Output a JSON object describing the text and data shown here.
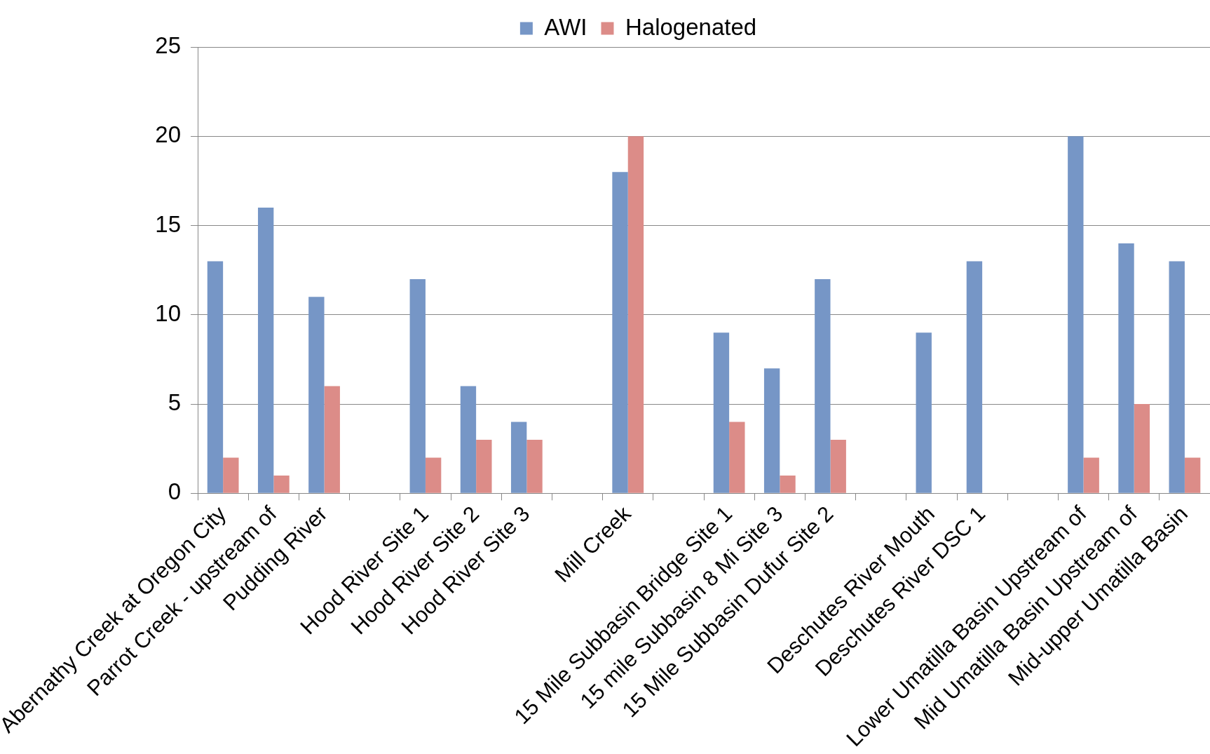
{
  "chart_data": {
    "type": "bar",
    "categories": [
      "Abernathy Creek at Oregon City",
      "Parrot Creek - upstream of",
      "Pudding River",
      null,
      "Hood River Site 1",
      "Hood River Site 2",
      "Hood River Site 3",
      null,
      "Mill Creek",
      null,
      "15 Mile Subbasin Bridge Site 1",
      "15 mile Subbasin 8 Mi Site 3",
      "15 Mile Subbasin Dufur Site 2",
      null,
      "Deschutes River Mouth",
      "Deschutes River DSC 1",
      null,
      "Lower Umatilla Basin Upstream of",
      "Mid Umatilla Basin Upstream of",
      "Mid-upper Umatilla Basin"
    ],
    "series": [
      {
        "name": "AWI",
        "color": "#7696c6",
        "values": [
          13,
          16,
          11,
          null,
          12,
          6,
          4,
          null,
          18,
          null,
          9,
          7,
          12,
          null,
          9,
          13,
          null,
          20,
          14,
          13
        ]
      },
      {
        "name": "Halogenated",
        "color": "#dc8c88",
        "values": [
          2,
          1,
          6,
          null,
          2,
          3,
          3,
          null,
          20,
          null,
          4,
          1,
          3,
          null,
          null,
          null,
          null,
          2,
          5,
          2
        ]
      }
    ],
    "ylim": [
      0,
      25
    ],
    "yticks": [
      0,
      5,
      10,
      15,
      20,
      25
    ],
    "grid": "y",
    "legend": "top"
  }
}
